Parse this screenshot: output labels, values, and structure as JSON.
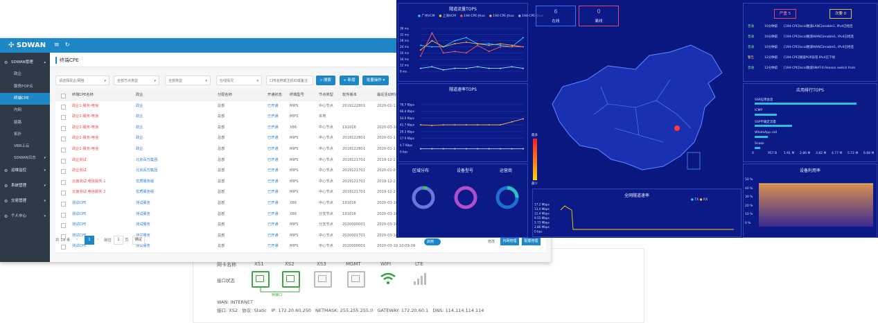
{
  "admin": {
    "logo": "SDWAN",
    "breadcrumb": "终端CPE",
    "sidebar": [
      {
        "label": "SDWAN管理",
        "group": true
      },
      {
        "label": "政企"
      },
      {
        "label": "服务POP点"
      },
      {
        "label": "终端CPE",
        "active": true
      },
      {
        "label": "内网"
      },
      {
        "label": "链路"
      },
      {
        "label": "拓扑"
      },
      {
        "label": "VBR上云"
      },
      {
        "label": "SDWAN日志",
        "chev": true
      },
      {
        "label": "运维监控",
        "group": true
      },
      {
        "label": "系统管理",
        "group": true
      },
      {
        "label": "交易管理",
        "group": true
      },
      {
        "label": "个人中心",
        "group": true
      }
    ],
    "filters": [
      "请选择政企/网络",
      "全部节点类型",
      "全部类型",
      "在线情况",
      "CPE名称或主机ID或备注"
    ],
    "buttons": {
      "search": "搜索",
      "add": "新增",
      "batch": "批量操作"
    },
    "columns": [
      "终端CPE名称",
      "政企",
      "分配名称",
      "开通状态",
      "终端型号",
      "节点类型",
      "软件版本",
      "最近活动时间"
    ],
    "rows": [
      [
        "政企1-服务-电信",
        "政企",
        "总部",
        "已开通",
        "MIPS",
        "中心节点",
        "2019122801",
        "2020-01-1"
      ],
      [
        "政企1-服务-电信",
        "政企",
        "总部",
        "已开通",
        "MIPS",
        "本地",
        "",
        ""
      ],
      [
        "政企1-服务-电信",
        "政企",
        "总部",
        "已开通",
        "X86",
        "中心节点",
        "191016",
        "2020-03-10"
      ],
      [
        "政企1-服务-电信",
        "政企",
        "总部",
        "已开通",
        "MIPS",
        "中心节点",
        "2019122801",
        "2020-01-1"
      ],
      [
        "政企1-服务-电信",
        "政企",
        "总部",
        "已开通",
        "MIPS",
        "中心节点",
        "2019122801",
        "2020-01-1"
      ],
      [
        "政企测试",
        "北京百万集团",
        "总部",
        "已开通",
        "MIPS",
        "中心节点",
        "2019121701",
        "2019-12-2"
      ],
      [
        "政企测试",
        "北京百万集团",
        "总部",
        "已开通",
        "MIPS",
        "中心节点",
        "2019121701",
        "2020-01-0"
      ],
      [
        "云南测试-电信服务-1",
        "优质服务组",
        "总部",
        "已开通",
        "MIPS",
        "中心节点",
        "2019121701",
        "2019-12-2"
      ],
      [
        "云南测试-电信服务-2",
        "优质服务组",
        "总部",
        "已开通",
        "MIPS",
        "中心节点",
        "2019121701",
        "2019-12-2"
      ],
      [
        "测试CPE",
        "测试服务",
        "总部",
        "已开通",
        "X86",
        "中心节点",
        "191016",
        "2020-03-10"
      ],
      [
        "测试CPE",
        "测试服务",
        "总部",
        "已开通",
        "X86",
        "分支节点",
        "191016",
        "2020-03-10"
      ],
      [
        "测试CPE",
        "测试服务",
        "总部",
        "已开通",
        "MIPS",
        "分支节点",
        "2020000001",
        "2020-03-10"
      ],
      [
        "测试CPE",
        "测试服务",
        "总部",
        "已开通",
        "MIPS",
        "中心节点",
        "2020001701",
        "2020-03-10"
      ],
      [
        "测试CPE",
        "测试服务",
        "总部",
        "已开通",
        "MIPS",
        "中心节点",
        "2020000001",
        "2020-03-10 10:09:09"
      ]
    ],
    "row_actions": {
      "toggle": "启用",
      "op1": "修改",
      "op2": "内网管理",
      "op3": "配置管理"
    },
    "pager": {
      "total": "共 14 条",
      "page": "1",
      "goto": "前往",
      "page_input": "1",
      "unit": "页",
      "confirm": "确定"
    }
  },
  "ports": {
    "headers": [
      "网卡名称",
      "XS1",
      "XS2",
      "XS3",
      "MGMT",
      "WIFI",
      "LTE"
    ],
    "port_status_label": "接口状态",
    "bridge_label": "桥接口",
    "wan_label": "WAN: INTERNET",
    "wan_detail": "接口: XS2   协议: Static   IP: 172.20.60.250   NETMASK: 255.255.255.0   GATEWAY: 172.20.60.1   DNS: 114.114.114.114"
  },
  "dash": {
    "tunnel_tops_title": "隧道流量TOPS",
    "rate_tops_title": "隧道速率TOPS",
    "region_title": "区域分布",
    "model_title": "设备型号",
    "operator_title": "运营商",
    "online_count": "6",
    "online_label": "在线",
    "offline_count": "0",
    "offline_label": "离线",
    "alert_fault": "严重",
    "alert_fault_count": "5",
    "alert_warn": "次要",
    "alert_warn_count": "0",
    "app_tops_title": "应用排行TOPS",
    "apps": [
      "SSP应用会话",
      "ICMP",
      "SSP不确定流量",
      "WhatsApp call",
      "Snake"
    ],
    "usage_title": "设备利用率",
    "all_tunnel_title": "全网隧道速率",
    "legend_scale": [
      "最多",
      "最少"
    ],
    "logs": [
      {
        "level": "普通",
        "time": "10分钟前",
        "msg": "[194-CPE]local隧道LAN口enable1, IPv4已经连"
      },
      {
        "level": "普通",
        "time": "10分钟前",
        "msg": "[194-CPE]local隧道WAN口enable1, IPv4已经连"
      },
      {
        "level": "普通",
        "time": "10分钟前",
        "msg": "[194-CPE]local隧道WAN口enable1, IPv4已经连"
      },
      {
        "level": "警告",
        "time": "12分钟前",
        "msg": "[194-CPE]隧道POP异常 IPv4已下线"
      },
      {
        "level": "普通",
        "time": "12分钟前",
        "msg": "[194-CPE]local隧道SNAT-0 Reason switch from"
      }
    ],
    "top_legend": [
      "广州VCM",
      "上海VCM",
      "194-CPE-Jhuo",
      "194-CPE-Jhuo",
      "194-CPE-Jhuo"
    ],
    "top_yticks": [
      "36 ms",
      "32 ms",
      "28 ms",
      "24 ms",
      "20 ms",
      "16 ms",
      "12 ms",
      "8 ms"
    ],
    "rate_yticks": [
      "78.7 Kbps",
      "66.4 Kbps",
      "54.0 Kbps",
      "41.7 Kbps",
      "29.3 Kbps",
      "17.0 Kbps",
      "4.7 Kbps",
      "0 bps"
    ],
    "all_yticks": [
      "17.2 Mbps",
      "13.4 Mbps",
      "11.4 Mbps",
      "9.55 Mbps",
      "5.73 Mbps",
      "2.86 Mbps",
      "0 bps"
    ],
    "all_legend": [
      "TX",
      "RX"
    ],
    "usage_yticks": [
      "50 %",
      "40 %",
      "30 %",
      "20 %",
      "10 %",
      "0 %"
    ],
    "app_xticks": [
      "0",
      "957 B",
      "1.91 M",
      "2.86 M",
      "3.82 M",
      "4.77 M",
      "5.72 M",
      "6.68 M"
    ]
  },
  "chart_data": [
    {
      "type": "line",
      "title": "隧道流量TOPS",
      "series": [
        {
          "name": "广州VCM",
          "values": [
            25,
            24,
            24,
            28,
            30,
            26,
            26,
            25,
            24,
            30
          ]
        },
        {
          "name": "上海VCM",
          "values": [
            22,
            28,
            24,
            26,
            27,
            26,
            25,
            26,
            25,
            24
          ]
        },
        {
          "name": "194-CPE-Jhuo",
          "values": [
            18,
            33,
            20,
            21,
            20,
            25,
            21,
            24,
            24,
            24
          ]
        },
        {
          "name": "194-CPE-Jhuo",
          "values": [
            10,
            11,
            9,
            10,
            10,
            11,
            10,
            10,
            11,
            10
          ]
        }
      ],
      "ylim": [
        8,
        36
      ]
    },
    {
      "type": "line",
      "title": "隧道速率TOPS",
      "series": [
        {
          "name": "广州VCM",
          "values": [
            45,
            44,
            45,
            45,
            45,
            45,
            45,
            45,
            50,
            55
          ]
        },
        {
          "name": "194-CPE-Jhuo",
          "values": [
            5,
            5,
            5,
            5,
            5,
            5,
            5,
            5,
            5,
            5
          ]
        }
      ],
      "ylim": [
        0,
        78.7
      ]
    }
  ]
}
